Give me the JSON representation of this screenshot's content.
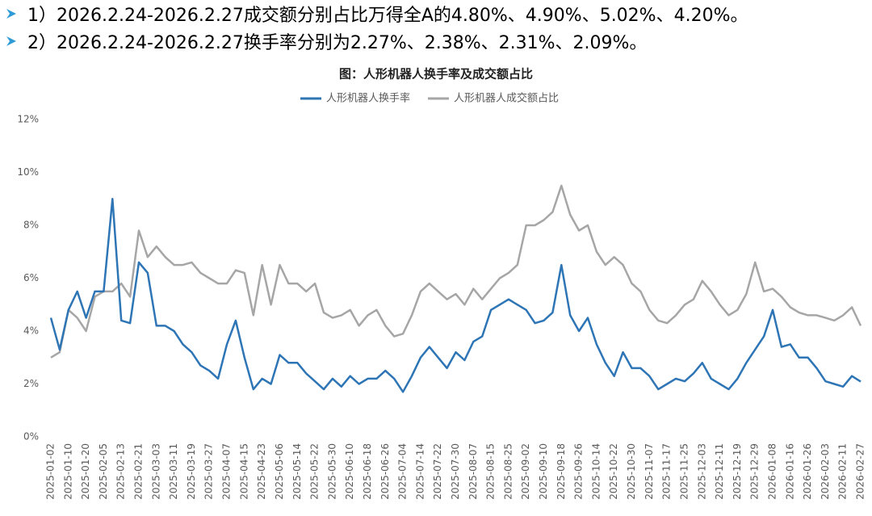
{
  "bullets": [
    "1）2026.2.24-2026.2.27成交额分别占比万得全A的4.80%、4.90%、5.02%、4.20%。",
    "2）2026.2.24-2026.2.27换手率分别为2.27%、2.38%、2.31%、2.09%。"
  ],
  "chart_data": {
    "type": "line",
    "title": "图：人形机器人换手率及成交额占比",
    "categories": [
      "2025-01-02",
      null,
      "2025-01-10",
      null,
      "2025-01-20",
      null,
      "2025-02-05",
      null,
      "2025-02-13",
      null,
      "2025-02-21",
      null,
      "2025-03-03",
      null,
      "2025-03-11",
      null,
      "2025-03-19",
      null,
      "2025-03-27",
      null,
      "2025-04-07",
      null,
      "2025-04-15",
      null,
      "2025-04-23",
      null,
      "2025-05-06",
      null,
      "2025-05-14",
      null,
      "2025-05-22",
      null,
      "2025-05-30",
      null,
      "2025-06-10",
      null,
      "2025-06-18",
      null,
      "2025-06-26",
      null,
      "2025-07-04",
      null,
      "2025-07-14",
      null,
      "2025-07-22",
      null,
      "2025-07-30",
      null,
      "2025-08-07",
      null,
      "2025-08-15",
      null,
      "2025-08-25",
      null,
      "2025-09-02",
      null,
      "2025-09-10",
      null,
      "2025-09-18",
      null,
      "2025-09-26",
      null,
      "2025-10-14",
      null,
      "2025-10-22",
      null,
      "2025-10-30",
      null,
      "2025-11-07",
      null,
      "2025-11-17",
      null,
      "2025-11-25",
      null,
      "2025-12-03",
      null,
      "2025-12-11",
      null,
      "2025-12-19",
      null,
      "2025-12-29",
      null,
      "2026-01-08",
      null,
      "2026-01-16",
      null,
      "2026-01-26",
      null,
      "2026-02-03",
      null,
      "2026-02-11",
      null,
      "2026-02-27"
    ],
    "series": [
      {
        "name": "人形机器人换手率",
        "color": "#2e75b6",
        "values": [
          4.5,
          3.3,
          4.8,
          5.5,
          4.5,
          5.5,
          5.5,
          9.0,
          4.4,
          4.3,
          6.6,
          6.2,
          4.2,
          4.2,
          4.0,
          3.5,
          3.2,
          2.7,
          2.5,
          2.2,
          3.5,
          4.4,
          3.0,
          1.8,
          2.2,
          2.0,
          3.1,
          2.8,
          2.8,
          2.4,
          2.1,
          1.8,
          2.2,
          1.9,
          2.3,
          2.0,
          2.2,
          2.2,
          2.5,
          2.2,
          1.7,
          2.3,
          3.0,
          3.4,
          3.0,
          2.6,
          3.2,
          2.9,
          3.6,
          3.8,
          4.8,
          5.0,
          5.2,
          5.0,
          4.8,
          4.3,
          4.4,
          4.7,
          6.5,
          4.6,
          4.0,
          4.5,
          3.5,
          2.8,
          2.3,
          3.2,
          2.6,
          2.6,
          2.3,
          1.8,
          2.0,
          2.2,
          2.1,
          2.4,
          2.8,
          2.2,
          2.0,
          1.8,
          2.2,
          2.8,
          3.3,
          3.8,
          4.8,
          3.4,
          3.5,
          3.0,
          3.0,
          2.6,
          2.1,
          2.0,
          1.9,
          2.3,
          2.09
        ]
      },
      {
        "name": "人形机器人成交额占比",
        "color": "#a6a6a6",
        "values": [
          3.0,
          3.2,
          4.8,
          4.5,
          4.0,
          5.3,
          5.5,
          5.5,
          5.8,
          5.3,
          7.8,
          6.8,
          7.2,
          6.8,
          6.5,
          6.5,
          6.6,
          6.2,
          6.0,
          5.8,
          5.8,
          6.3,
          6.2,
          4.6,
          6.5,
          5.0,
          6.5,
          5.8,
          5.8,
          5.5,
          5.8,
          4.7,
          4.5,
          4.6,
          4.8,
          4.2,
          4.6,
          4.8,
          4.2,
          3.8,
          3.9,
          4.6,
          5.5,
          5.8,
          5.5,
          5.2,
          5.4,
          5.0,
          5.6,
          5.2,
          5.6,
          6.0,
          6.2,
          6.5,
          8.0,
          8.0,
          8.2,
          8.5,
          9.5,
          8.4,
          7.8,
          8.0,
          7.0,
          6.5,
          6.8,
          6.5,
          5.8,
          5.5,
          4.8,
          4.4,
          4.3,
          4.6,
          5.0,
          5.2,
          5.9,
          5.5,
          5.0,
          4.6,
          4.8,
          5.4,
          6.6,
          5.5,
          5.6,
          5.3,
          4.9,
          4.7,
          4.6,
          4.6,
          4.5,
          4.4,
          4.6,
          4.9,
          4.2
        ]
      }
    ],
    "ylim": [
      0,
      12
    ],
    "yticks": [
      {
        "value": 0,
        "label": "0%"
      },
      {
        "value": 2,
        "label": "2%"
      },
      {
        "value": 4,
        "label": "4%"
      },
      {
        "value": 6,
        "label": "6%"
      },
      {
        "value": 8,
        "label": "8%"
      },
      {
        "value": 10,
        "label": "10%"
      },
      {
        "value": 12,
        "label": "12%"
      }
    ],
    "grid": false,
    "legend": "top"
  }
}
